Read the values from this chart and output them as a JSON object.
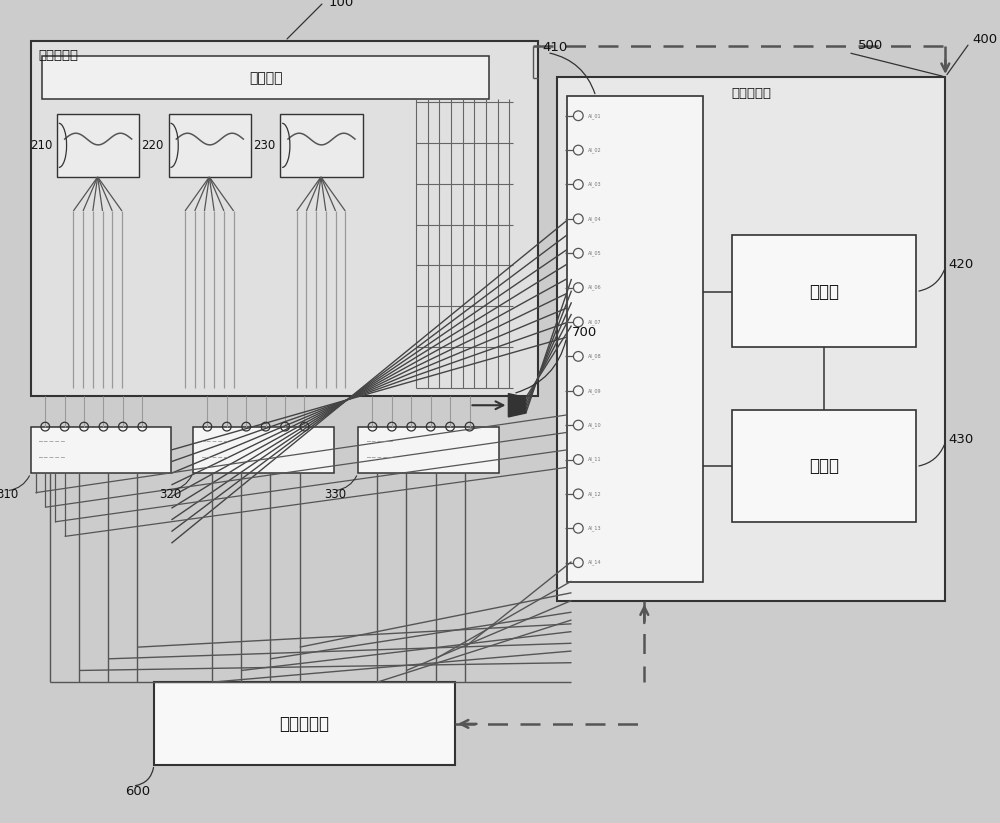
{
  "bg": "#cccccc",
  "box_fc_light": "#e8e8e8",
  "box_fc_white": "#f8f8f8",
  "box_ec": "#333333",
  "lc": "#333333",
  "dc": "#555555",
  "tc": "#111111",
  "labels": {
    "hengwen": "恒温试验箱",
    "beice": "被测系统",
    "gongyejisuan": "工业计算机",
    "cunchu": "存储器",
    "kongzhi": "控制器",
    "gaojingdu": "高精度仪表",
    "n100": "100",
    "n210": "210",
    "n220": "220",
    "n230": "230",
    "n310": "310",
    "n320": "320",
    "n330": "330",
    "n400": "400",
    "n410": "410",
    "n420": "420",
    "n430": "430",
    "n500": "500",
    "n600": "600",
    "n700": "700"
  },
  "figsize": [
    10.0,
    8.23
  ],
  "dpi": 100
}
